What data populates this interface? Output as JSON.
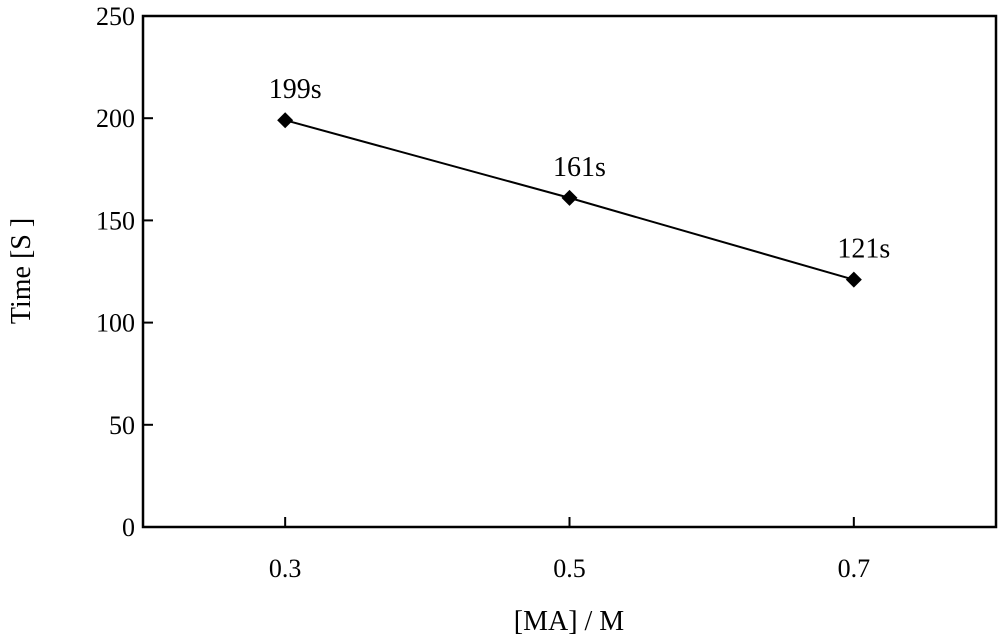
{
  "chart_data": {
    "type": "line",
    "title": "",
    "xlabel": "[MA]  /  M",
    "ylabel": "Time  [S ]",
    "xlim": [
      0.2,
      0.8
    ],
    "ylim": [
      0,
      250
    ],
    "x_ticks": [
      "0.3",
      "0.5",
      "0.7"
    ],
    "y_ticks": [
      "0",
      "50",
      "100",
      "150",
      "200",
      "250"
    ],
    "grid": false,
    "legend": "none",
    "series": [
      {
        "x": [
          0.3,
          0.5,
          0.7
        ],
        "y": [
          199,
          161,
          121
        ],
        "labels": [
          "199s",
          "161s",
          "121s"
        ],
        "marker": "diamond",
        "color": "#000000"
      }
    ]
  }
}
